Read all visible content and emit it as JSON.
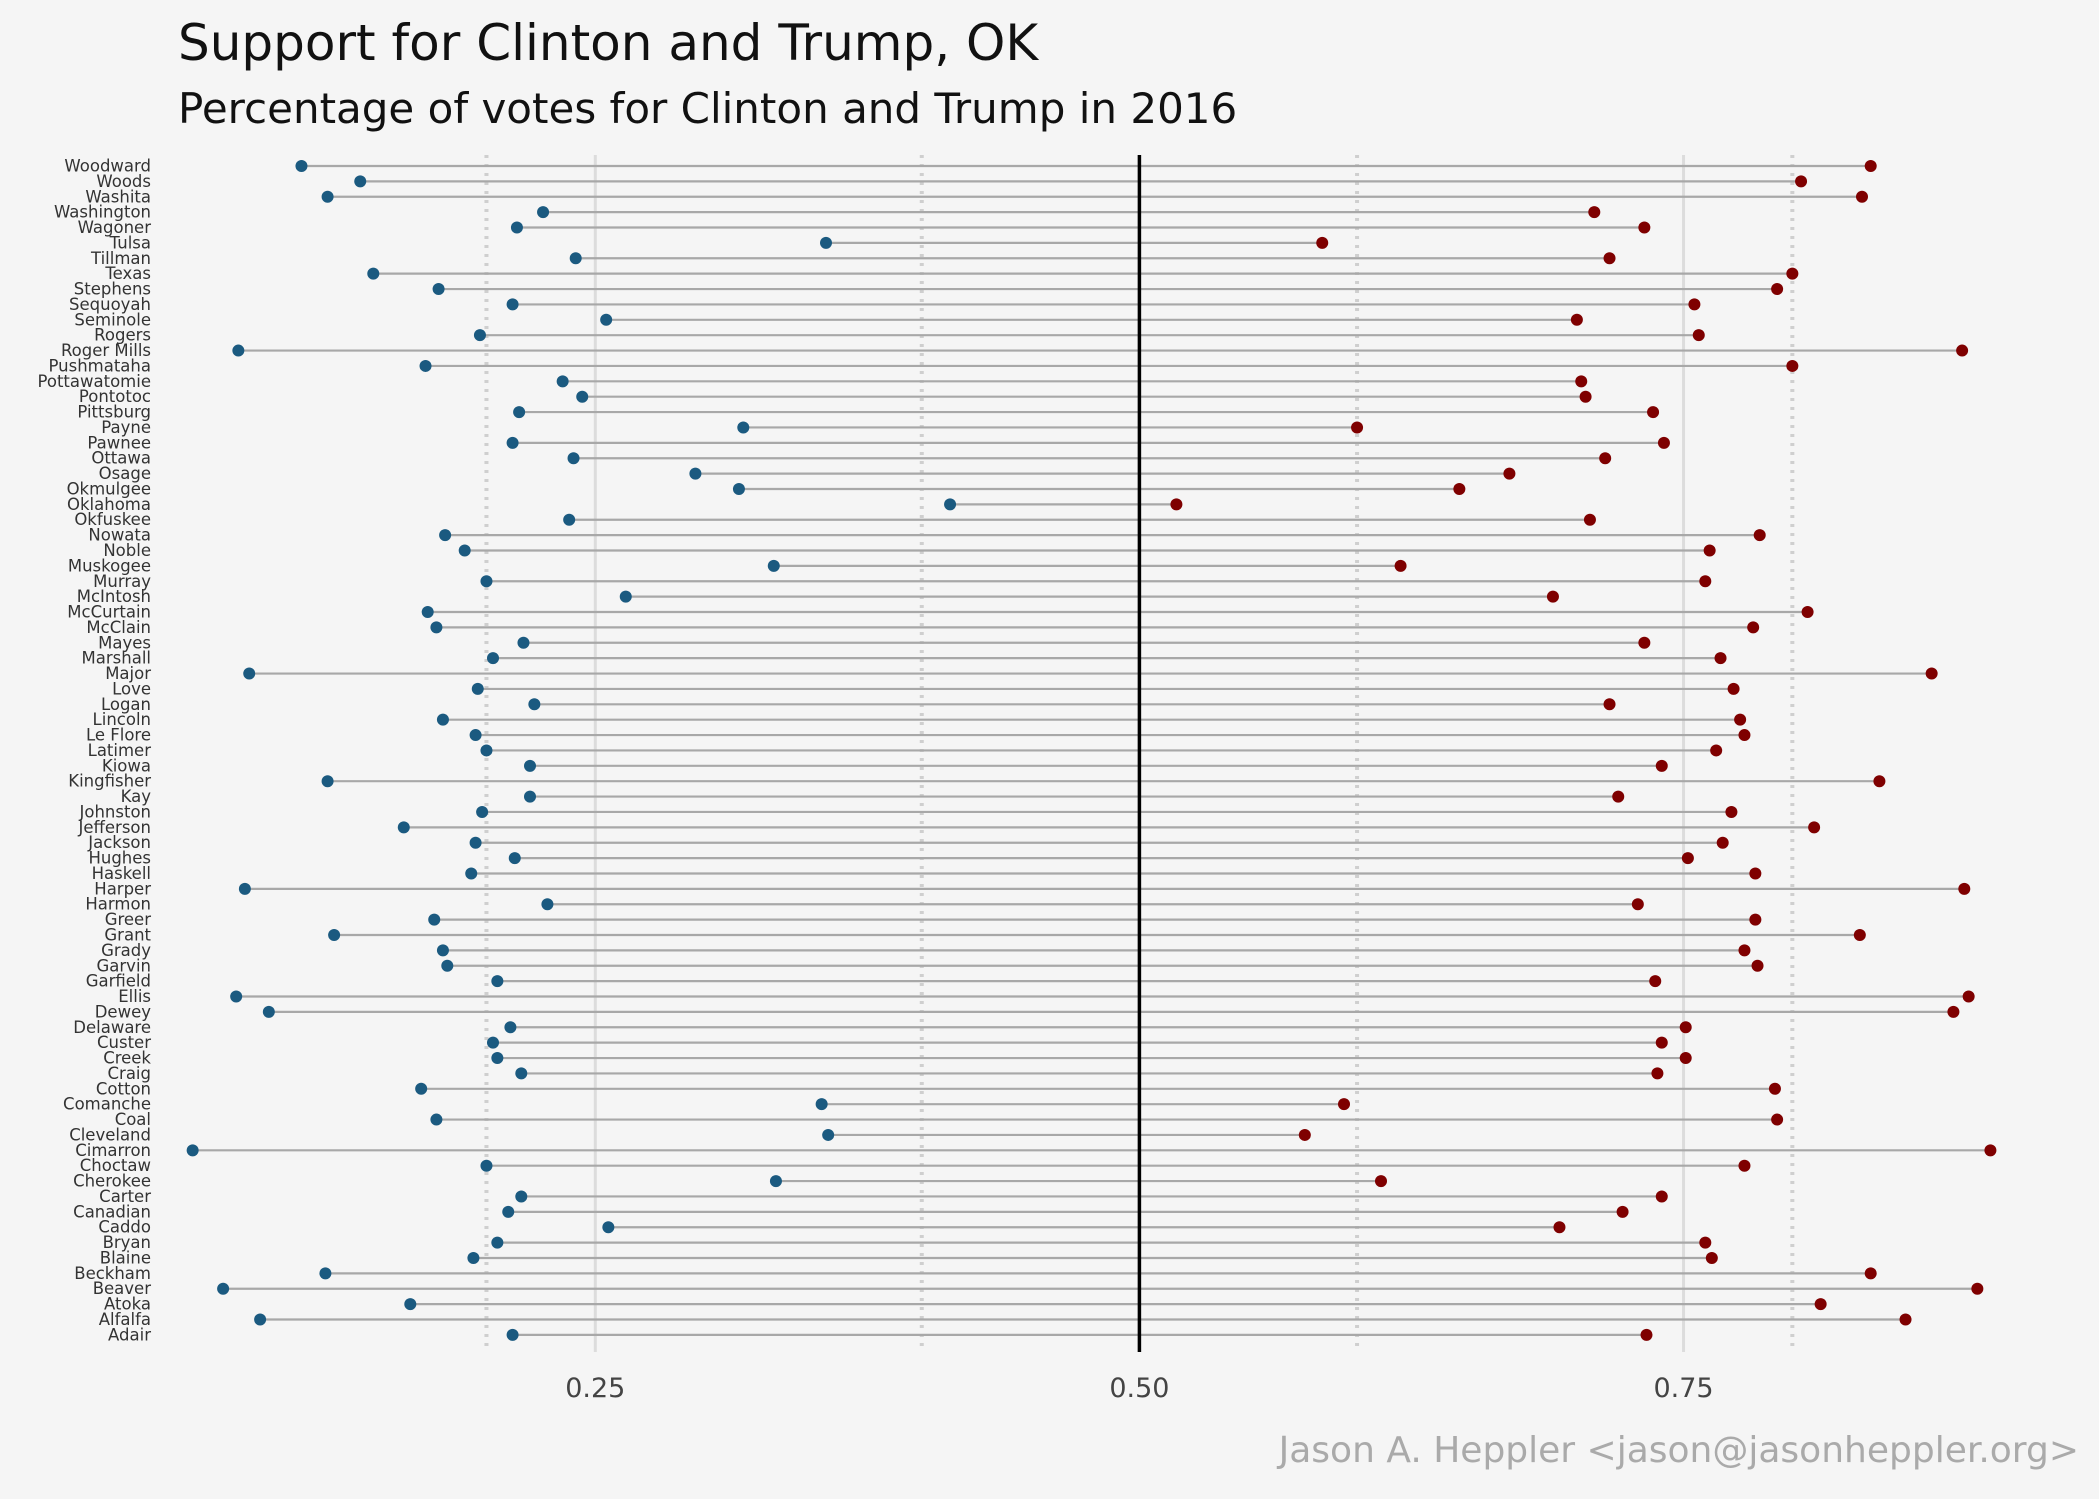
{
  "title": "Support for Clinton and Trump,  OK",
  "subtitle": "Percentage of votes for Clinton and Trump in 2016",
  "caption": "Jason A. Heppler <jason@jasonheppler.org>",
  "colors": {
    "clinton": "#1b5a80",
    "trump": "#7f0000",
    "segment": "#a8a8a8",
    "midline": "#000000",
    "background": "#f5f5f5"
  },
  "chart_data": {
    "type": "dumbbell",
    "xlim": [
      0.05,
      0.9
    ],
    "x_ticks": [
      0.25,
      0.5,
      0.75
    ],
    "x_tick_labels": [
      "0.25",
      "0.50",
      "0.75"
    ],
    "reference_line": 0.5,
    "dotted_lines": [
      0.2,
      0.4,
      0.6,
      0.8
    ],
    "grid": "vertical major and minor",
    "series": [
      {
        "name": "Clinton",
        "color": "#1b5a80",
        "values": [
          0.115,
          0.142,
          0.127,
          0.226,
          0.214,
          0.356,
          0.241,
          0.148,
          0.178,
          0.212,
          0.255,
          0.197,
          0.086,
          0.172,
          0.235,
          0.244,
          0.215,
          0.318,
          0.212,
          0.24,
          0.296,
          0.316,
          0.413,
          0.238,
          0.181,
          0.19,
          0.332,
          0.2,
          0.264,
          0.173,
          0.177,
          0.217,
          0.203,
          0.091,
          0.196,
          0.222,
          0.18,
          0.195,
          0.2,
          0.22,
          0.127,
          0.22,
          0.198,
          0.162,
          0.195,
          0.213,
          0.193,
          0.089,
          0.228,
          0.176,
          0.13,
          0.18,
          0.182,
          0.205,
          0.085,
          0.1,
          0.211,
          0.203,
          0.205,
          0.216,
          0.17,
          0.354,
          0.177,
          0.357,
          0.065,
          0.2,
          0.333,
          0.216,
          0.21,
          0.256,
          0.205,
          0.194,
          0.126,
          0.079,
          0.165,
          0.096,
          0.212
        ]
      },
      {
        "name": "Trump",
        "color": "#7f0000",
        "values": [
          0.836,
          0.804,
          0.832,
          0.709,
          0.732,
          0.584,
          0.716,
          0.8,
          0.793,
          0.755,
          0.701,
          0.757,
          0.878,
          0.8,
          0.703,
          0.705,
          0.736,
          0.6,
          0.741,
          0.714,
          0.67,
          0.647,
          0.517,
          0.707,
          0.785,
          0.762,
          0.62,
          0.76,
          0.69,
          0.807,
          0.782,
          0.732,
          0.767,
          0.864,
          0.773,
          0.716,
          0.776,
          0.778,
          0.765,
          0.74,
          0.84,
          0.72,
          0.772,
          0.81,
          0.768,
          0.752,
          0.783,
          0.879,
          0.729,
          0.783,
          0.831,
          0.778,
          0.784,
          0.737,
          0.881,
          0.874,
          0.751,
          0.74,
          0.751,
          0.738,
          0.792,
          0.594,
          0.793,
          0.576,
          0.891,
          0.778,
          0.611,
          0.74,
          0.722,
          0.693,
          0.76,
          0.763,
          0.836,
          0.885,
          0.813,
          0.852,
          0.733
        ]
      }
    ],
    "categories": [
      "Woodward",
      "Woods",
      "Washita",
      "Washington",
      "Wagoner",
      "Tulsa",
      "Tillman",
      "Texas",
      "Stephens",
      "Sequoyah",
      "Seminole",
      "Rogers",
      "Roger Mills",
      "Pushmataha",
      "Pottawatomie",
      "Pontotoc",
      "Pittsburg",
      "Payne",
      "Pawnee",
      "Ottawa",
      "Osage",
      "Okmulgee",
      "Oklahoma",
      "Okfuskee",
      "Nowata",
      "Noble",
      "Muskogee",
      "Murray",
      "McIntosh",
      "McCurtain",
      "McClain",
      "Mayes",
      "Marshall",
      "Major",
      "Love",
      "Logan",
      "Lincoln",
      "Le Flore",
      "Latimer",
      "Kiowa",
      "Kingfisher",
      "Kay",
      "Johnston",
      "Jefferson",
      "Jackson",
      "Hughes",
      "Haskell",
      "Harper",
      "Harmon",
      "Greer",
      "Grant",
      "Grady",
      "Garvin",
      "Garfield",
      "Ellis",
      "Dewey",
      "Delaware",
      "Custer",
      "Creek",
      "Craig",
      "Cotton",
      "Comanche",
      "Coal",
      "Cleveland",
      "Cimarron",
      "Choctaw",
      "Cherokee",
      "Carter",
      "Canadian",
      "Caddo",
      "Bryan",
      "Blaine",
      "Beckham",
      "Beaver",
      "Atoka",
      "Alfalfa",
      "Adair"
    ]
  }
}
